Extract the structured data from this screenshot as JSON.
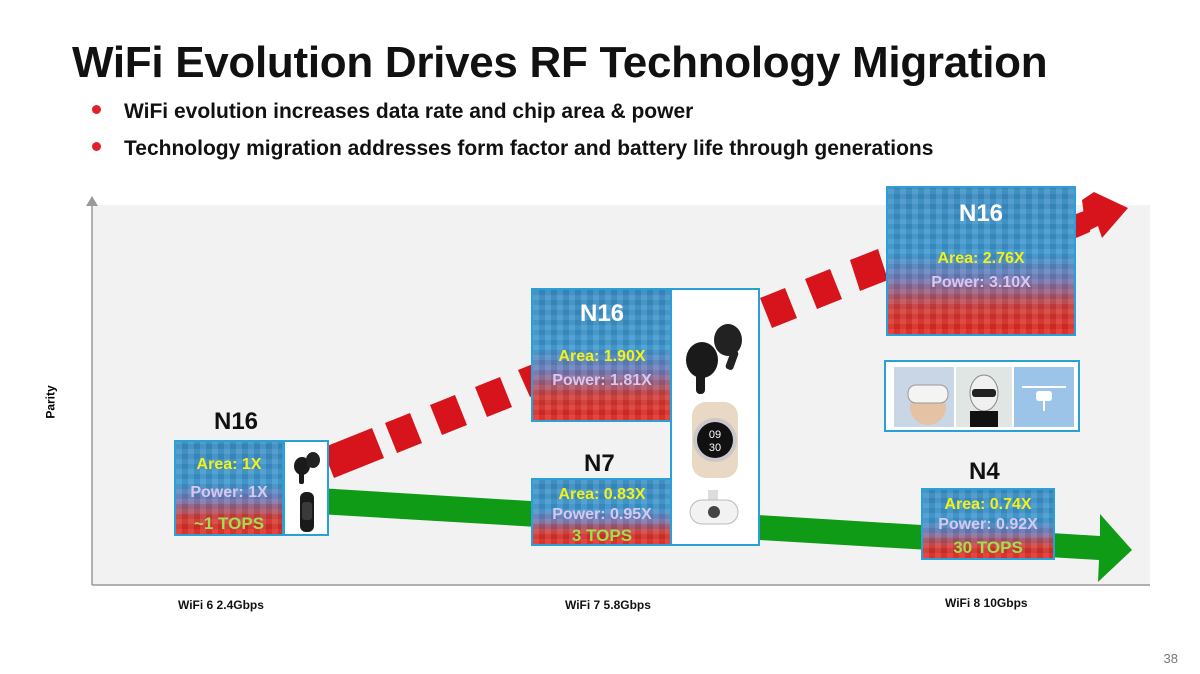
{
  "title": "WiFi Evolution Drives RF Technology Migration",
  "bullets": [
    "WiFi evolution increases data rate and chip area & power",
    "Technology migration addresses form factor and battery life through generations"
  ],
  "axes": {
    "ylabel": "Parity",
    "x_ticks": [
      "WiFi 6 2.4Gbps",
      "WiFi 7 5.8Gbps",
      "WiFi 8 10Gbps"
    ]
  },
  "nodes": {
    "n16_wifi6": {
      "label": "N16",
      "area": "Area: 1X",
      "power": "Power: 1X",
      "tops": "~1 TOPS"
    },
    "n16_wifi7": {
      "label": "N16",
      "area": "Area: 1.90X",
      "power": "Power: 1.81X"
    },
    "n7_wifi7": {
      "label": "N7",
      "area": "Area: 0.83X",
      "power": "Power: 0.95X",
      "tops": "3 TOPS"
    },
    "n16_wifi8": {
      "label": "N16",
      "area": "Area: 2.76X",
      "power": "Power: 3.10X"
    },
    "n4_wifi8": {
      "label": "N4",
      "area": "Area: 0.74X",
      "power": "Power: 0.92X",
      "tops": "30 TOPS"
    }
  },
  "watch_face": {
    "line1": "09",
    "line2": "30"
  },
  "colors": {
    "red_arrow": "#d7141c",
    "green_arrow": "#0f9b16",
    "box_border": "#2aa0d8"
  },
  "icons": [
    "earbuds-icon",
    "fitness-band-icon",
    "smartwatch-icon",
    "security-camera-icon",
    "vr-headset-icon",
    "robot-icon",
    "drone-icon"
  ],
  "page_number": "38"
}
